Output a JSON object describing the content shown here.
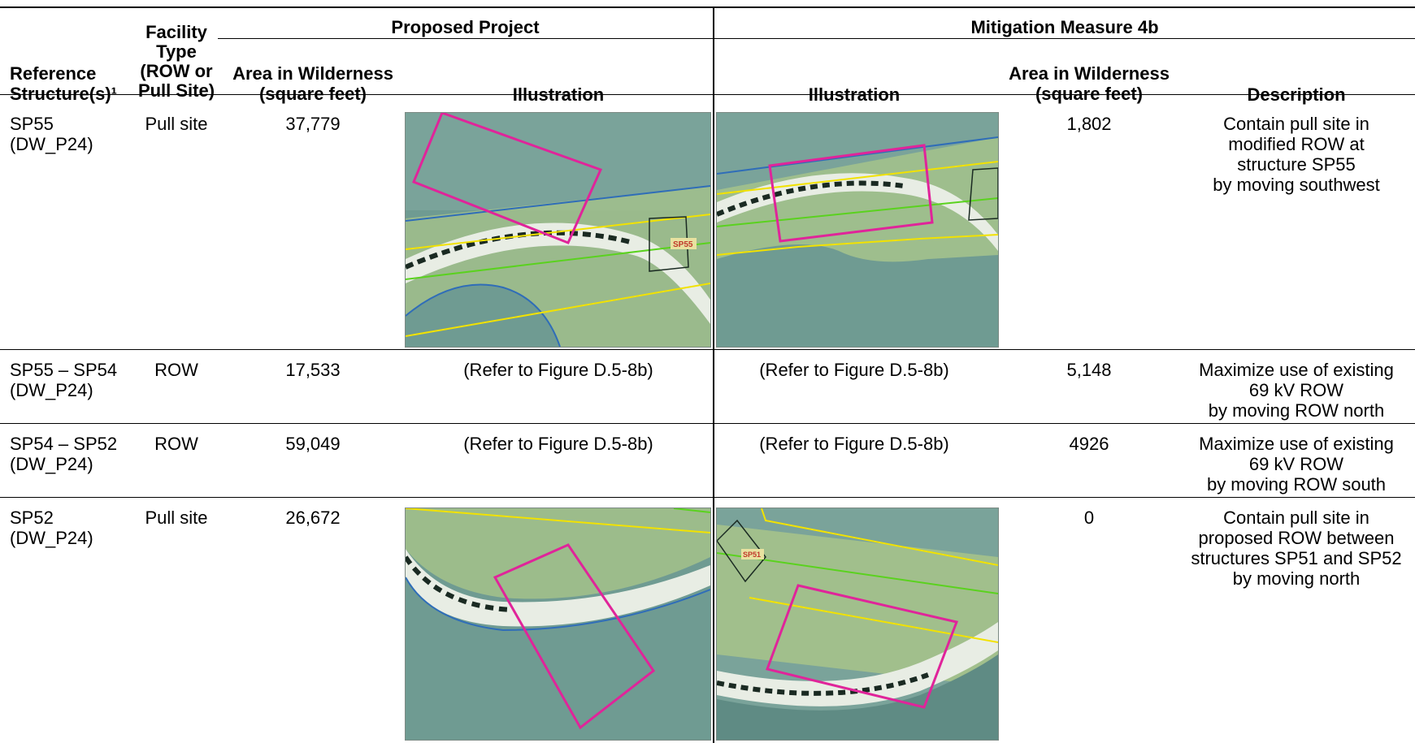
{
  "headers": {
    "reference": "Reference Structure(s)¹",
    "facility_type": "Facility Type (ROW or Pull Site)",
    "proposed_group": "Proposed Project",
    "mitigation_group": "Mitigation Measure 4b",
    "area_proposed": "Area in Wilderness (square feet)",
    "illustration_proposed": "Illustration",
    "illustration_mitigation": "Illustration",
    "area_mitigation": "Area in Wilderness (square feet)",
    "description": "Description"
  },
  "rows": [
    {
      "reference": "SP55\n(DW_P24)",
      "facility_type": "Pull site",
      "area_proposed": "37,779",
      "illustration_proposed": "",
      "illustration_mitigation": "",
      "area_mitigation": "1,802",
      "description": "Contain pull site in\nmodified ROW at\nstructure SP55\nby moving southwest",
      "map_label_proposed": "SP55"
    },
    {
      "reference": "SP55 – SP54\n(DW_P24)",
      "facility_type": "ROW",
      "area_proposed": "17,533",
      "illustration_proposed": "(Refer to Figure D.5-8b)",
      "illustration_mitigation": "(Refer to Figure D.5-8b)",
      "area_mitigation": "5,148",
      "description": "Maximize use of existing\n69 kV ROW\nby moving ROW north"
    },
    {
      "reference": "SP54 – SP52\n(DW_P24)",
      "facility_type": "ROW",
      "area_proposed": "59,049",
      "illustration_proposed": "(Refer to Figure D.5-8b)",
      "illustration_mitigation": "(Refer to Figure D.5-8b)",
      "area_mitigation": "4926",
      "description": "Maximize use of existing\n69 kV ROW\nby moving ROW south"
    },
    {
      "reference": "SP52\n(DW_P24)",
      "facility_type": "Pull site",
      "area_proposed": "26,672",
      "illustration_proposed": "",
      "illustration_mitigation": "",
      "area_mitigation": "0",
      "description": "Contain pull site in\nproposed ROW between\nstructures SP51 and SP52\nby moving north",
      "map_label_mitigation": "SP51"
    }
  ],
  "colors": {
    "pull_site_outline": "#e0249a",
    "row_boundary_yellow": "#f2e200",
    "centerline_green": "#5ad21e",
    "wilderness_boundary_blue": "#2f6db8",
    "vegetation_teal": "#6f9b92",
    "vegetation_light": "#a8c48a"
  }
}
